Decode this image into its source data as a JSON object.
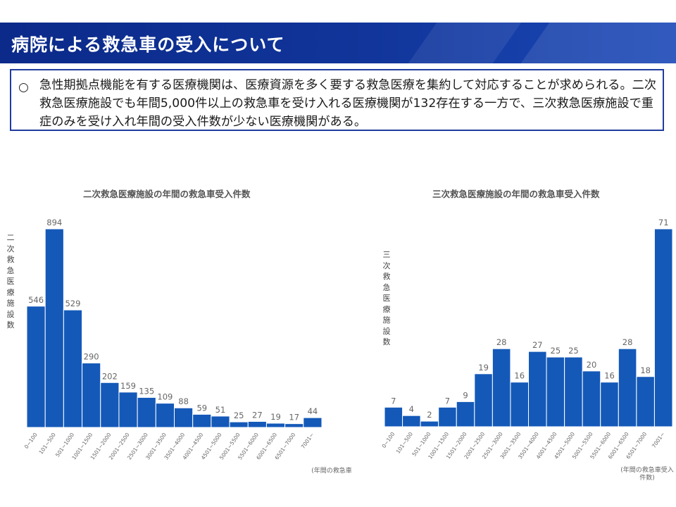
{
  "header": {
    "title": "病院による救急車の受入について"
  },
  "info": {
    "bullet": "○",
    "text": "急性期拠点機能を有する医療機関は、医療資源を多く要する救急医療を集約して対応することが求められる。二次救急医療施設でも年間5,000件以上の救急車を受け入れる医療機関が132存在する一方で、三次救急医療施設で重症のみを受け入れ年間の受入件数が少ない医療機関がある。"
  },
  "colors": {
    "bar": "#1459b8",
    "header": "#0b2a8a",
    "border": "#1f3c9e"
  },
  "chart_data": [
    {
      "type": "bar",
      "title": "二次救急医療施設の年間の救急車受入件数",
      "ylabel": "二次救急医療施設数",
      "xlabel": "(年間の救急車",
      "categories": [
        "0~100",
        "101~500",
        "501~1000",
        "1001~1500",
        "1501~2000",
        "2001~2500",
        "2501~3000",
        "3001~3500",
        "3501~4000",
        "4001~4500",
        "4501~5000",
        "5001~5500",
        "5501~6000",
        "6001~6500",
        "6501~7000",
        "7001~"
      ],
      "values": [
        546,
        894,
        529,
        290,
        202,
        159,
        135,
        109,
        88,
        59,
        51,
        25,
        27,
        19,
        17,
        44
      ],
      "ylim": [
        0,
        894
      ]
    },
    {
      "type": "bar",
      "title": "三次救急医療施設の年間の救急車受入件数",
      "ylabel": "三次救急医療施設数",
      "xlabel": "(年間の救急車受入件数)",
      "categories": [
        "0~100",
        "101~500",
        "501~1000",
        "1001~1500",
        "1501~2000",
        "2001~2500",
        "2501~3000",
        "3001~3500",
        "3501~4000",
        "4001~4500",
        "4501~5000",
        "5001~5500",
        "5501~6000",
        "6001~6500",
        "6501~7000",
        "7001~"
      ],
      "values": [
        7,
        4,
        2,
        7,
        9,
        19,
        28,
        16,
        27,
        25,
        25,
        20,
        16,
        28,
        18,
        71
      ],
      "ylim": [
        0,
        71
      ]
    }
  ]
}
